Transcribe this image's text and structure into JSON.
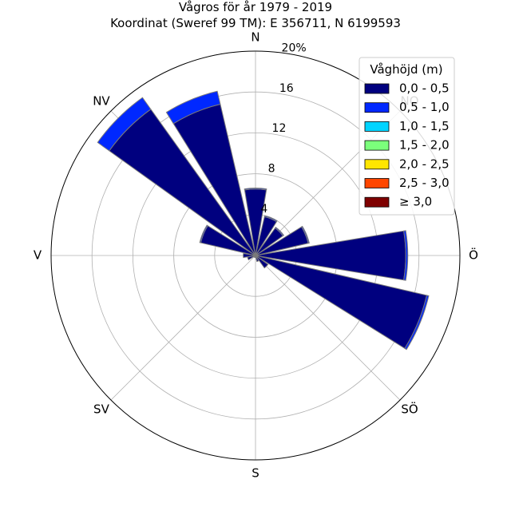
{
  "chart_data": {
    "type": "bar",
    "subtype": "polar-stacked",
    "title": "Vågros för år 1979 - 2019",
    "subtitle": "Koordinat (Sweref 99 TM): E 356711, N 6199593",
    "unit": "%",
    "rmax": 20,
    "radial_ticks": [
      "4",
      "8",
      "12",
      "16",
      "20%"
    ],
    "radial_tick_values": [
      4,
      8,
      12,
      16,
      20
    ],
    "direction_labels": [
      "N",
      "NO",
      "Ö",
      "SÖ",
      "S",
      "SV",
      "V",
      "NV"
    ],
    "grid": true,
    "legend": {
      "title": "Våghöjd (m)",
      "placement": "top-right",
      "entries": [
        {
          "label": "0,0 - 0,5",
          "color": "#00007f"
        },
        {
          "label": "0,5 - 1,0",
          "color": "#0028ff"
        },
        {
          "label": "1,0 - 1,5",
          "color": "#00d4ff"
        },
        {
          "label": "1,5 - 2,0",
          "color": "#7bff7b"
        },
        {
          "label": "2,0 - 2,5",
          "color": "#ffe600"
        },
        {
          "label": "2,5 - 3,0",
          "color": "#ff4600"
        },
        {
          "label": "≥ 3,0",
          "color": "#7f0000"
        }
      ]
    },
    "sectors": [
      {
        "direction": 0,
        "stack": [
          6.5,
          0.1
        ]
      },
      {
        "direction": 22.5,
        "stack": [
          3.9,
          0.1
        ]
      },
      {
        "direction": 45,
        "stack": [
          3.3,
          0.1
        ]
      },
      {
        "direction": 67.5,
        "stack": [
          5.3,
          0.1
        ]
      },
      {
        "direction": 90,
        "stack": [
          14.7,
          0.2
        ]
      },
      {
        "direction": 112.5,
        "stack": [
          17.2,
          0.2
        ]
      },
      {
        "direction": 135,
        "stack": [
          1.5
        ]
      },
      {
        "direction": 157.5,
        "stack": [
          0.6
        ]
      },
      {
        "direction": 180,
        "stack": [
          0.2
        ]
      },
      {
        "direction": 202.5,
        "stack": [
          0.2
        ]
      },
      {
        "direction": 225,
        "stack": [
          0.2
        ]
      },
      {
        "direction": 247.5,
        "stack": [
          0.8
        ]
      },
      {
        "direction": 270,
        "stack": [
          1.2
        ]
      },
      {
        "direction": 292.5,
        "stack": [
          5.5,
          0.1
        ]
      },
      {
        "direction": 315,
        "stack": [
          17.6,
          1.4
        ]
      },
      {
        "direction": 337.5,
        "stack": [
          15.2,
          1.3
        ]
      }
    ]
  }
}
